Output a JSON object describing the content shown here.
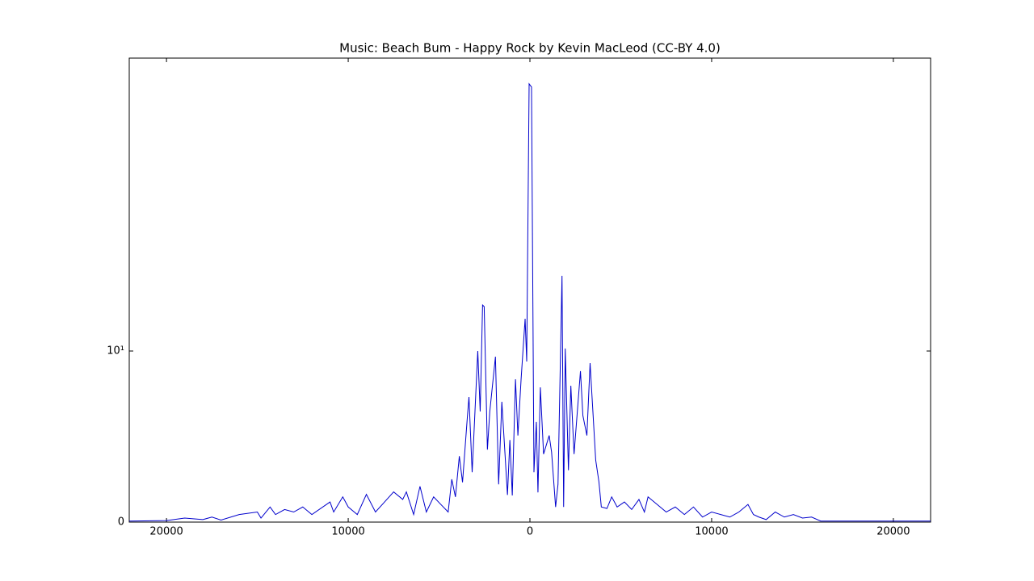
{
  "chart_data": {
    "type": "line",
    "title": "Music: Beach Bum - Happy Rock by Kevin MacLeod (CC-BY 4.0)",
    "color": "#0000cc",
    "yscale": "symlog",
    "linthresh": 2,
    "xlim": [
      -22050,
      22050
    ],
    "xticks": [
      {
        "value": -20000,
        "label": "20000"
      },
      {
        "value": -10000,
        "label": "10000"
      },
      0,
      10000,
      20000
    ],
    "ylim": [
      0,
      8110
    ],
    "yticks": [
      0,
      {
        "value": 10,
        "label": "10¹"
      }
    ],
    "x": [
      -22050,
      -20000,
      -19000,
      -18000,
      -17500,
      -17000,
      -16000,
      -15000,
      -14800,
      -14300,
      -14000,
      -13500,
      -13000,
      -12500,
      -12000,
      -11000,
      -10800,
      -10300,
      -10000,
      -9500,
      -9000,
      -8500,
      -8000,
      -7500,
      -7000,
      -6800,
      -6400,
      -6050,
      -5700,
      -5300,
      -4900,
      -4500,
      -4300,
      -4100,
      -3885,
      -3709,
      -3444,
      -3355,
      -3179,
      -2870,
      -2737,
      -2605,
      -2517,
      -2340,
      -2208,
      -1898,
      -1722,
      -1545,
      -1236,
      -1104,
      -971,
      -795,
      -662,
      -486,
      -265,
      -177,
      -44,
      88,
      221,
      353,
      442,
      574,
      751,
      1060,
      1192,
      1413,
      1545,
      1766,
      1855,
      1943,
      2119,
      2252,
      2428,
      2781,
      2914,
      3135,
      3311,
      3620,
      3797,
      3929,
      4238,
      4500,
      4800,
      5200,
      5600,
      6000,
      6300,
      6500,
      7000,
      7500,
      8000,
      8500,
      9000,
      9500,
      10000,
      10500,
      11000,
      11500,
      12000,
      12300,
      12600,
      13000,
      13500,
      14000,
      14500,
      15000,
      15500,
      16000,
      22050
    ],
    "values": [
      0.02,
      0.03,
      0.08,
      0.05,
      0.1,
      0.04,
      0.15,
      0.2,
      0.08,
      0.3,
      0.15,
      0.25,
      0.2,
      0.3,
      0.15,
      0.4,
      0.2,
      0.5,
      0.3,
      0.15,
      0.55,
      0.2,
      0.4,
      0.6,
      0.45,
      0.6,
      0.15,
      0.71,
      0.2,
      0.5,
      0.35,
      0.2,
      0.85,
      0.5,
      1.31,
      0.79,
      2.2,
      3.49,
      0.99,
      10,
      2.51,
      28.6,
      27.6,
      1.44,
      2.51,
      8.79,
      0.75,
      3.13,
      0.54,
      1.63,
      0.53,
      5.24,
      1.72,
      5.24,
      20.9,
      7.87,
      4500,
      4180,
      0.99,
      1.99,
      0.59,
      4.36,
      1.35,
      1.72,
      1.39,
      0.3,
      0.75,
      55.7,
      0.3,
      10.6,
      1.03,
      4.52,
      1.35,
      6.31,
      2.29,
      1.72,
      7.58,
      1.23,
      0.8,
      0.3,
      0.27,
      0.5,
      0.3,
      0.4,
      0.25,
      0.45,
      0.2,
      0.5,
      0.35,
      0.2,
      0.3,
      0.15,
      0.3,
      0.1,
      0.2,
      0.15,
      0.1,
      0.2,
      0.35,
      0.15,
      0.1,
      0.05,
      0.2,
      0.1,
      0.15,
      0.08,
      0.1,
      0.02,
      0.02
    ]
  }
}
